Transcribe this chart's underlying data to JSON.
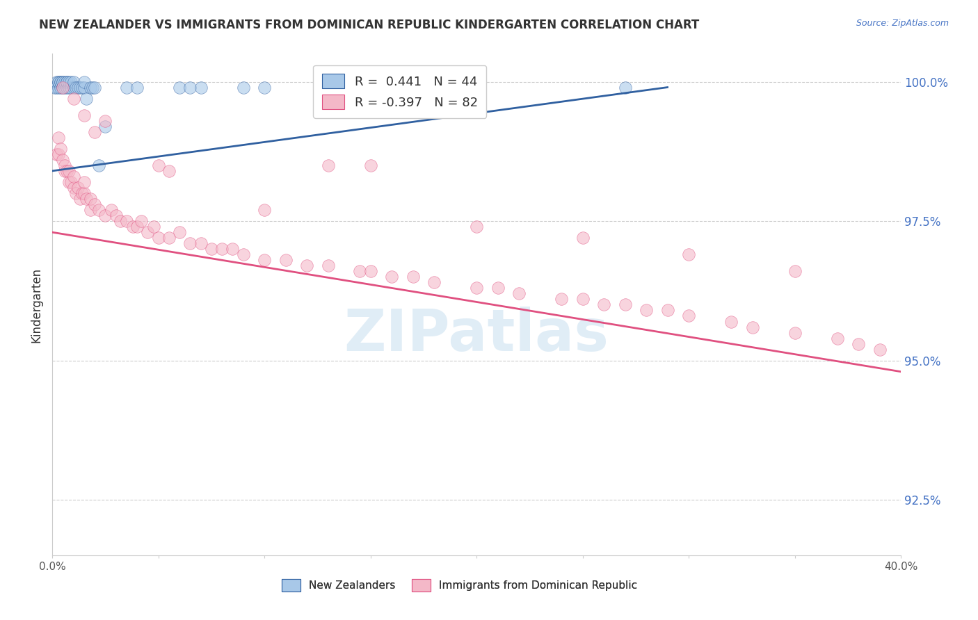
{
  "title": "NEW ZEALANDER VS IMMIGRANTS FROM DOMINICAN REPUBLIC KINDERGARTEN CORRELATION CHART",
  "source": "Source: ZipAtlas.com",
  "ylabel": "Kindergarten",
  "right_yticks": [
    "100.0%",
    "97.5%",
    "95.0%",
    "92.5%"
  ],
  "right_ytick_vals": [
    1.0,
    0.975,
    0.95,
    0.925
  ],
  "xmin": 0.0,
  "xmax": 0.4,
  "ymin": 0.915,
  "ymax": 1.005,
  "legend_r_blue": "0.441",
  "legend_n_blue": "44",
  "legend_r_pink": "-0.397",
  "legend_n_pink": "82",
  "blue_color": "#a8c8e8",
  "pink_color": "#f4b8c8",
  "blue_line_color": "#3060a0",
  "pink_line_color": "#e05080",
  "watermark_text": "ZIPatlas",
  "blue_x": [
    0.001,
    0.002,
    0.002,
    0.003,
    0.003,
    0.003,
    0.004,
    0.004,
    0.004,
    0.005,
    0.005,
    0.005,
    0.006,
    0.006,
    0.007,
    0.007,
    0.007,
    0.008,
    0.008,
    0.009,
    0.009,
    0.01,
    0.01,
    0.011,
    0.012,
    0.013,
    0.014,
    0.015,
    0.015,
    0.016,
    0.018,
    0.019,
    0.02,
    0.022,
    0.025,
    0.035,
    0.04,
    0.06,
    0.065,
    0.07,
    0.09,
    0.1,
    0.15,
    0.27
  ],
  "blue_y": [
    0.999,
    0.999,
    1.0,
    0.999,
    1.0,
    1.0,
    0.999,
    1.0,
    1.0,
    0.999,
    1.0,
    1.0,
    0.999,
    1.0,
    0.999,
    1.0,
    1.0,
    0.999,
    1.0,
    0.999,
    1.0,
    0.999,
    1.0,
    0.999,
    0.999,
    0.999,
    0.999,
    0.999,
    1.0,
    0.997,
    0.999,
    0.999,
    0.999,
    0.985,
    0.992,
    0.999,
    0.999,
    0.999,
    0.999,
    0.999,
    0.999,
    0.999,
    0.999,
    0.999
  ],
  "pink_x": [
    0.002,
    0.003,
    0.003,
    0.004,
    0.005,
    0.006,
    0.006,
    0.007,
    0.008,
    0.008,
    0.009,
    0.01,
    0.01,
    0.011,
    0.012,
    0.013,
    0.014,
    0.015,
    0.015,
    0.016,
    0.018,
    0.018,
    0.02,
    0.022,
    0.025,
    0.028,
    0.03,
    0.032,
    0.035,
    0.038,
    0.04,
    0.042,
    0.045,
    0.048,
    0.05,
    0.055,
    0.06,
    0.065,
    0.07,
    0.075,
    0.08,
    0.085,
    0.09,
    0.1,
    0.11,
    0.12,
    0.13,
    0.145,
    0.15,
    0.16,
    0.17,
    0.18,
    0.2,
    0.21,
    0.22,
    0.24,
    0.25,
    0.26,
    0.27,
    0.28,
    0.29,
    0.3,
    0.32,
    0.33,
    0.35,
    0.37,
    0.38,
    0.39,
    0.005,
    0.01,
    0.015,
    0.02,
    0.025,
    0.05,
    0.1,
    0.15,
    0.2,
    0.25,
    0.3,
    0.35,
    0.055,
    0.13
  ],
  "pink_y": [
    0.987,
    0.987,
    0.99,
    0.988,
    0.986,
    0.984,
    0.985,
    0.984,
    0.982,
    0.984,
    0.982,
    0.981,
    0.983,
    0.98,
    0.981,
    0.979,
    0.98,
    0.98,
    0.982,
    0.979,
    0.977,
    0.979,
    0.978,
    0.977,
    0.976,
    0.977,
    0.976,
    0.975,
    0.975,
    0.974,
    0.974,
    0.975,
    0.973,
    0.974,
    0.972,
    0.972,
    0.973,
    0.971,
    0.971,
    0.97,
    0.97,
    0.97,
    0.969,
    0.968,
    0.968,
    0.967,
    0.967,
    0.966,
    0.966,
    0.965,
    0.965,
    0.964,
    0.963,
    0.963,
    0.962,
    0.961,
    0.961,
    0.96,
    0.96,
    0.959,
    0.959,
    0.958,
    0.957,
    0.956,
    0.955,
    0.954,
    0.953,
    0.952,
    0.999,
    0.997,
    0.994,
    0.991,
    0.993,
    0.985,
    0.977,
    0.985,
    0.974,
    0.972,
    0.969,
    0.966,
    0.984,
    0.985
  ]
}
